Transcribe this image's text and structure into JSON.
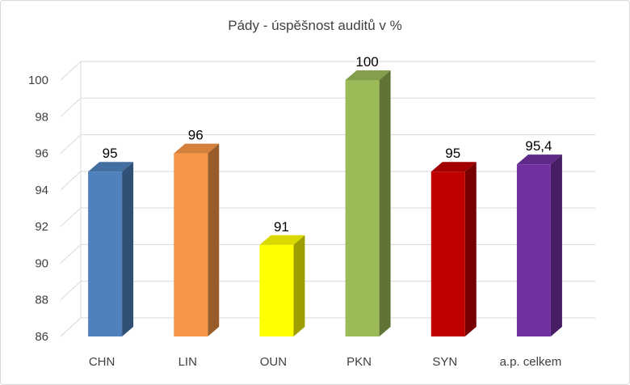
{
  "chart_data": {
    "type": "bar",
    "title": "Pády - úspěšnost auditů v %",
    "categories": [
      "CHN",
      "LIN",
      "OUN",
      "PKN",
      "SYN",
      "a.p. celkem"
    ],
    "values": [
      95,
      96,
      91,
      100,
      95,
      95.4
    ],
    "value_labels": [
      "95",
      "96",
      "91",
      "100",
      "95",
      "95,4"
    ],
    "colors": [
      "#4f81bd",
      "#f79646",
      "#ffff00",
      "#9bbb59",
      "#c00000",
      "#7030a0"
    ],
    "ylim": [
      86,
      100
    ],
    "yticks": [
      "86",
      "88",
      "90",
      "92",
      "94",
      "96",
      "98",
      "100"
    ],
    "ytick_values": [
      86,
      88,
      90,
      92,
      94,
      96,
      98,
      100
    ],
    "grid": true,
    "legend": "none",
    "xlabel": "",
    "ylabel": ""
  }
}
